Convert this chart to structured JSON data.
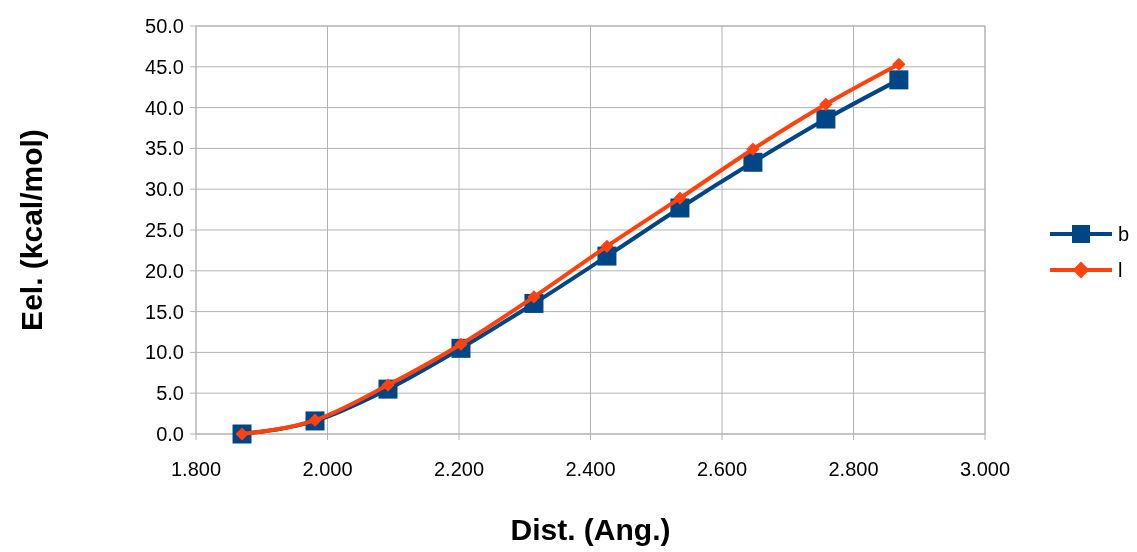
{
  "chart_data": {
    "type": "line",
    "xlabel": "Dist. (Ang.)",
    "ylabel": "Eel. (kcal/mol)",
    "x": [
      1.87,
      1.981,
      2.092,
      2.203,
      2.314,
      2.425,
      2.536,
      2.647,
      2.758,
      2.869
    ],
    "series": [
      {
        "name": "b",
        "color": "#004586",
        "marker": "square",
        "values": [
          0,
          1.6,
          5.5,
          10.5,
          16.0,
          21.8,
          27.7,
          33.3,
          38.6,
          43.4
        ]
      },
      {
        "name": "l",
        "color": "#ff420e",
        "marker": "diamond",
        "values": [
          0,
          1.7,
          6.0,
          11.0,
          16.8,
          23.0,
          28.9,
          34.9,
          40.4,
          45.3
        ]
      }
    ],
    "xlim": [
      1.8,
      3.0
    ],
    "xticks": [
      {
        "value": 1.8,
        "label": "1.800"
      },
      {
        "value": 2.0,
        "label": "2.000"
      },
      {
        "value": 2.2,
        "label": "2.200"
      },
      {
        "value": 2.4,
        "label": "2.400"
      },
      {
        "value": 2.6,
        "label": "2.600"
      },
      {
        "value": 2.8,
        "label": "2.800"
      },
      {
        "value": 3.0,
        "label": "3.000"
      }
    ],
    "ylim": [
      0,
      50
    ],
    "yticks": [
      {
        "value": 0,
        "label": "0.0"
      },
      {
        "value": 5,
        "label": "5.0"
      },
      {
        "value": 10,
        "label": "10.0"
      },
      {
        "value": 15,
        "label": "15.0"
      },
      {
        "value": 20,
        "label": "20.0"
      },
      {
        "value": 25,
        "label": "25.0"
      },
      {
        "value": 30,
        "label": "30.0"
      },
      {
        "value": 35,
        "label": "35.0"
      },
      {
        "value": 40,
        "label": "40.0"
      },
      {
        "value": 45,
        "label": "45.0"
      },
      {
        "value": 50,
        "label": "50.0"
      }
    ],
    "grid": true,
    "legend": "right",
    "line_style": "solid"
  }
}
